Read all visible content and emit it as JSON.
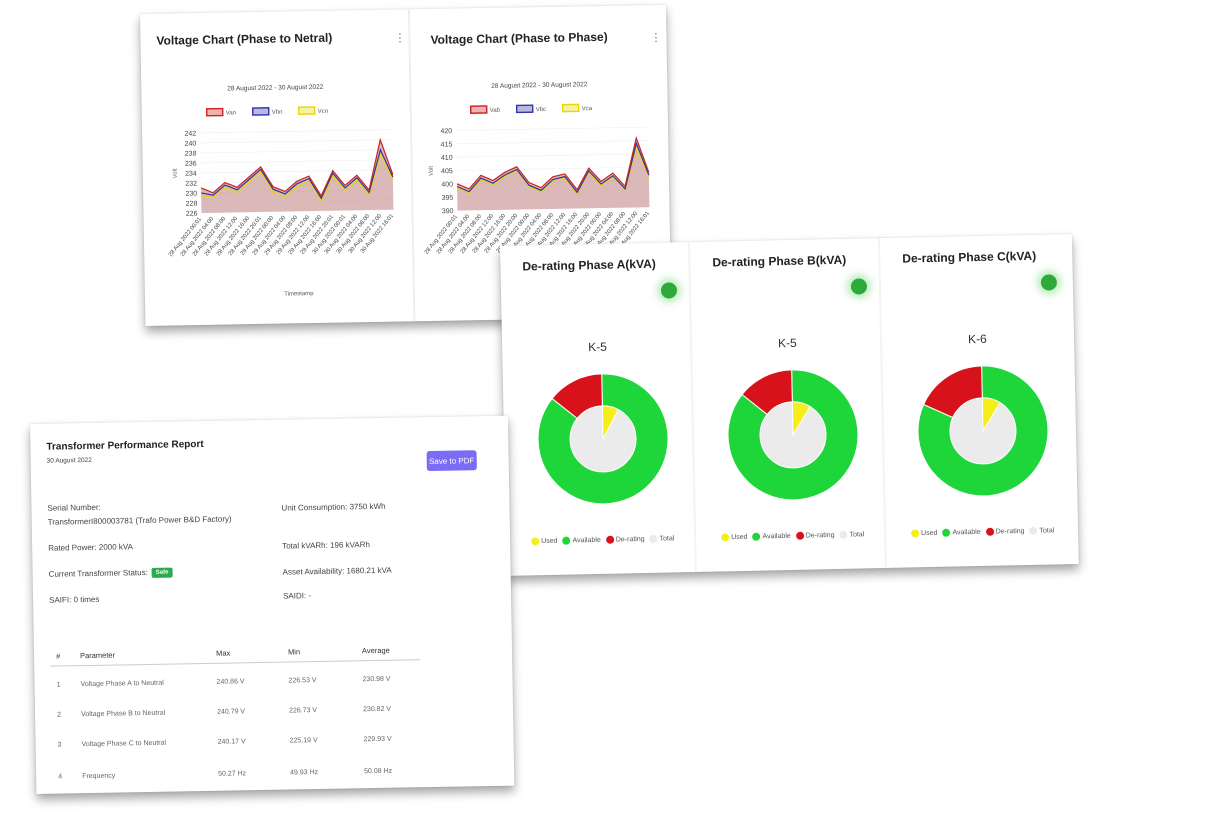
{
  "voltage_pn": {
    "title": "Voltage Chart (Phase to Netral)",
    "menu_icon": "⋮",
    "chart_data": {
      "type": "area",
      "title": "28 August 2022 - 30 August 2022",
      "xlabel": "Timestamp",
      "ylabel": "Volt",
      "ylim": [
        226,
        242
      ],
      "yticks": [
        "242",
        "240",
        "238",
        "236",
        "234",
        "232",
        "230",
        "228",
        "226"
      ],
      "x": [
        "28 Aug 2022 00:01",
        "28 Aug 2022 04:00",
        "28 Aug 2022 08:00",
        "28 Aug 2022 12:00",
        "28 Aug 2022 16:00",
        "28 Aug 2022 20:01",
        "29 Aug 2022 00:00",
        "29 Aug 2022 04:00",
        "29 Aug 2022 08:00",
        "29 Aug 2022 12:00",
        "29 Aug 2022 16:00",
        "29 Aug 2022 20:01",
        "30 Aug 2022 00:01",
        "30 Aug 2022 04:00",
        "30 Aug 2022 08:00",
        "30 Aug 2022 12:00",
        "30 Aug 2022 16:01"
      ],
      "series": [
        {
          "name": "Van",
          "color": "#cc2222",
          "values": [
            231,
            230,
            232,
            231,
            233,
            235,
            231,
            230,
            232,
            233,
            229,
            234,
            231,
            233,
            230,
            240,
            233
          ]
        },
        {
          "name": "Vbn",
          "color": "#3333aa",
          "values": [
            230,
            229.5,
            231.5,
            230.5,
            232.5,
            234.5,
            230.5,
            229.5,
            231.5,
            232.5,
            228.5,
            233.5,
            230.5,
            232.5,
            229.5,
            238,
            232.5
          ]
        },
        {
          "name": "Vcn",
          "color": "#e6d800",
          "values": [
            229.5,
            229,
            231,
            230,
            232,
            234,
            230,
            229,
            231,
            232,
            228,
            233,
            230,
            232,
            229,
            237,
            232
          ]
        }
      ]
    }
  },
  "voltage_pp": {
    "title": "Voltage Chart (Phase to Phase)",
    "menu_icon": "⋮",
    "chart_data": {
      "type": "area",
      "title": "28 August 2022 - 30 August 2022",
      "xlabel": "",
      "ylabel": "Volt",
      "ylim": [
        390,
        420
      ],
      "yticks": [
        "420",
        "415",
        "410",
        "405",
        "400",
        "395",
        "390"
      ],
      "x": [
        "28 Aug 2022 00:01",
        "28 Aug 2022 04:00",
        "28 Aug 2022 08:00",
        "28 Aug 2022 12:00",
        "28 Aug 2022 16:00",
        "28 Aug 2022 20:00",
        "29 Aug 2022 00:00",
        "29 Aug 2022 04:00",
        "29 Aug 2022 08:00",
        "29 Aug 2022 12:00",
        "29 Aug 2022 16:00",
        "29 Aug 2022 20:00",
        "30 Aug 2022 00:00",
        "30 Aug 2022 04:00",
        "30 Aug 2022 08:00",
        "30 Aug 2022 12:00",
        "30 Aug 2022 16:01"
      ],
      "series": [
        {
          "name": "Vab",
          "color": "#cc2222",
          "values": [
            400,
            398,
            403,
            401,
            404,
            406,
            400,
            398,
            402,
            403,
            397,
            405,
            400,
            403,
            398,
            416,
            403
          ]
        },
        {
          "name": "Vbc",
          "color": "#3333aa",
          "values": [
            399,
            397,
            402,
            400,
            403,
            405,
            399,
            397,
            401,
            402,
            396,
            404,
            399,
            402,
            397,
            414,
            402
          ]
        },
        {
          "name": "Vca",
          "color": "#e6d800",
          "values": [
            398.5,
            396.5,
            401.5,
            399.5,
            402.5,
            404.5,
            398.5,
            396.5,
            400.5,
            401.5,
            395.5,
            403.5,
            398.5,
            401.5,
            396.5,
            412,
            401.5
          ]
        }
      ]
    }
  },
  "derating": [
    {
      "title": "De-rating Phase A(kVA)",
      "k": "K-5",
      "chart_data": {
        "type": "pie",
        "title": "K-5",
        "categories": [
          "Used",
          "Available",
          "De-rating",
          "Total"
        ],
        "outer": {
          "available": 0.86,
          "derating": 0.14
        },
        "inner_used": 0.08
      }
    },
    {
      "title": "De-rating Phase B(kVA)",
      "k": "K-5",
      "chart_data": {
        "type": "pie",
        "title": "K-5",
        "categories": [
          "Used",
          "Available",
          "De-rating",
          "Total"
        ],
        "outer": {
          "available": 0.86,
          "derating": 0.14
        },
        "inner_used": 0.09
      }
    },
    {
      "title": "De-rating Phase C(kVA)",
      "k": "K-6",
      "chart_data": {
        "type": "pie",
        "title": "K-6",
        "categories": [
          "Used",
          "Available",
          "De-rating",
          "Total"
        ],
        "outer": {
          "available": 0.82,
          "derating": 0.18
        },
        "inner_used": 0.09
      }
    }
  ],
  "legend": {
    "used": "Used",
    "available": "Available",
    "derating": "De-rating",
    "total": "Total"
  },
  "colors": {
    "used": "#f5ee1a",
    "available": "#1ed63a",
    "derating": "#d8121b",
    "total": "#ebebeb",
    "status": "#2eaa3a",
    "button": "#7b6cf6"
  },
  "report": {
    "title": "Transformer Performance Report",
    "date": "30 August 2022",
    "save_label": "Save to PDF",
    "serial_label": "Serial Number:",
    "serial_value": "TransformerI800003781 (Trafo Power B&D Factory)",
    "rated_power": "Rated Power: 2000 kVA",
    "status_label": "Current Transformer Status:",
    "status_value": "Safe",
    "saifi": "SAIFI: 0 times",
    "unit_consumption": "Unit Consumption: 3750 kWh",
    "total_kvarh": "Total kVARh: 196 kVARh",
    "asset_availability": "Asset Availability: 1680.21 kVA",
    "saidi": "SAIDI: -",
    "table": {
      "headers": [
        "#",
        "Parameter",
        "Max",
        "Min",
        "Average"
      ],
      "rows": [
        [
          "1",
          "Voltage Phase A to Neutral",
          "240.86 V",
          "226.53 V",
          "230.98 V"
        ],
        [
          "2",
          "Voltage Phase B to Neutral",
          "240.79 V",
          "226.73 V",
          "230.82 V"
        ],
        [
          "3",
          "Voltage Phase C to Neutral",
          "240.17 V",
          "225.19 V",
          "229.93 V"
        ],
        [
          "4",
          "Frequency",
          "50.27 Hz",
          "49.93 Hz",
          "50.08 Hz"
        ]
      ]
    }
  }
}
